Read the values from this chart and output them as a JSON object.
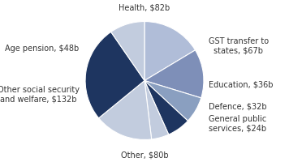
{
  "labels": [
    "Health, $82b",
    "GST transfer to\nstates, $67b",
    "Education, $36b",
    "Defence, $32b",
    "General public\nservices, $24b",
    "Other, $80b",
    "Other social security\nand welfare, $132b",
    "Age pension, $48b"
  ],
  "values": [
    82,
    67,
    36,
    32,
    24,
    80,
    132,
    48
  ],
  "colors": [
    "#b0bdd8",
    "#7e8fb8",
    "#8a9fc0",
    "#1e3560",
    "#c2ccde",
    "#c2ccde",
    "#1e3560",
    "#c2ccde"
  ],
  "startangle": 90,
  "background_color": "#ffffff",
  "label_positions": {
    "0": [
      0.0,
      1.18,
      "center",
      "bottom"
    ],
    "1": [
      1.08,
      0.6,
      "left",
      "center"
    ],
    "2": [
      1.08,
      -0.05,
      "left",
      "center"
    ],
    "3": [
      1.08,
      -0.42,
      "left",
      "center"
    ],
    "4": [
      1.08,
      -0.72,
      "left",
      "center"
    ],
    "5": [
      0.0,
      -1.18,
      "center",
      "top"
    ],
    "6": [
      -1.1,
      -0.22,
      "right",
      "center"
    ],
    "7": [
      -1.1,
      0.55,
      "right",
      "center"
    ]
  },
  "fontsize": 7.0
}
